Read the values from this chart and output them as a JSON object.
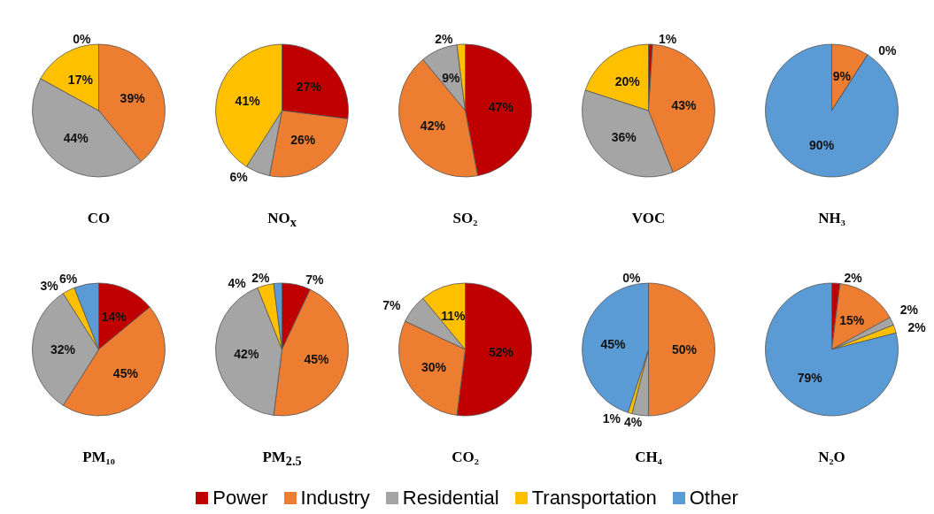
{
  "chart_data": [
    {
      "type": "pie",
      "title": "CO",
      "categories": [
        "Power",
        "Industry",
        "Residential",
        "Transportation",
        "Other"
      ],
      "values": [
        0,
        39,
        44,
        17,
        null
      ],
      "value_labels": [
        "0%",
        "39%",
        "44%",
        "17%",
        null
      ],
      "colors": [
        "#c00000",
        "#ed7d31",
        "#a5a5a5",
        "#ffc000",
        "#5b9bd5"
      ],
      "legend": "bottom"
    },
    {
      "type": "pie",
      "title": "NO$_{x}$",
      "categories": [
        null,
        null,
        null,
        null
      ],
      "values": [
        27,
        26,
        6,
        41
      ],
      "value_labels": [
        "27%",
        "26%",
        "6%",
        "41%"
      ],
      "colors": [
        "#c00000",
        "#ed7d31",
        "#a5a5a5",
        "#ffc000"
      ]
    },
    {
      "type": "pie",
      "title": "SO₂",
      "categories": [
        null,
        null,
        null,
        null
      ],
      "values": [
        47,
        42,
        9,
        2
      ],
      "value_labels": [
        "47%",
        "42%",
        "9%",
        "2%"
      ],
      "colors": [
        "#c00000",
        "#ed7d31",
        "#a5a5a5",
        "#ffc000"
      ]
    },
    {
      "type": "pie",
      "title": "VOC",
      "categories": [
        null,
        null,
        null,
        null
      ],
      "values": [
        1,
        43,
        36,
        20
      ],
      "value_labels": [
        "1%",
        "43%",
        "36%",
        "20%"
      ],
      "colors": [
        "#c00000",
        "#ed7d31",
        "#a5a5a5",
        "#ffc000"
      ]
    },
    {
      "type": "pie",
      "title": "NH₃",
      "categories": [
        null,
        null,
        null
      ],
      "values": [
        9,
        0,
        90
      ],
      "value_labels": [
        "9%",
        "0%",
        "90%"
      ],
      "colors": [
        "#ed7d31",
        "#a5a5a5",
        "#5b9bd5"
      ]
    },
    {
      "type": "pie",
      "title": "PM₁₀",
      "categories": [
        null,
        null,
        null,
        null,
        null
      ],
      "values": [
        14,
        45,
        32,
        3,
        6
      ],
      "value_labels": [
        "14%",
        "45%",
        "32%",
        "3%",
        "6%"
      ],
      "colors": [
        "#c00000",
        "#ed7d31",
        "#a5a5a5",
        "#ffc000",
        "#5b9bd5"
      ]
    },
    {
      "type": "pie",
      "title": "PM$_{2.5}$",
      "categories": [
        null,
        null,
        null,
        null,
        null
      ],
      "values": [
        7,
        45,
        42,
        4,
        2
      ],
      "value_labels": [
        "7%",
        "45%",
        "42%",
        "4%",
        "2%"
      ],
      "colors": [
        "#c00000",
        "#ed7d31",
        "#a5a5a5",
        "#ffc000",
        "#5b9bd5"
      ]
    },
    {
      "type": "pie",
      "title": "CO₂",
      "categories": [
        null,
        null,
        null,
        null
      ],
      "values": [
        52,
        30,
        7,
        11
      ],
      "value_labels": [
        "52%",
        "30%",
        "7%",
        "11%"
      ],
      "colors": [
        "#c00000",
        "#ed7d31",
        "#a5a5a5",
        "#ffc000"
      ]
    },
    {
      "type": "pie",
      "title": "CH₄",
      "categories": [
        null,
        null,
        null,
        null,
        null
      ],
      "values": [
        0,
        50,
        4,
        1,
        45
      ],
      "value_labels": [
        "0%",
        "50%",
        "4%",
        "1%",
        "45%"
      ],
      "colors": [
        "#c00000",
        "#ed7d31",
        "#a5a5a5",
        "#ffc000",
        "#5b9bd5"
      ]
    },
    {
      "type": "pie",
      "title": "N₂O",
      "categories": [
        null,
        null,
        null,
        null,
        null
      ],
      "values": [
        2,
        15,
        2,
        2,
        79
      ],
      "value_labels": [
        "2%",
        "15%",
        "2%",
        "2%",
        "79%"
      ],
      "colors": [
        "#c00000",
        "#ed7d31",
        "#a5a5a5",
        "#ffc000",
        "#5b9bd5"
      ]
    }
  ]
}
